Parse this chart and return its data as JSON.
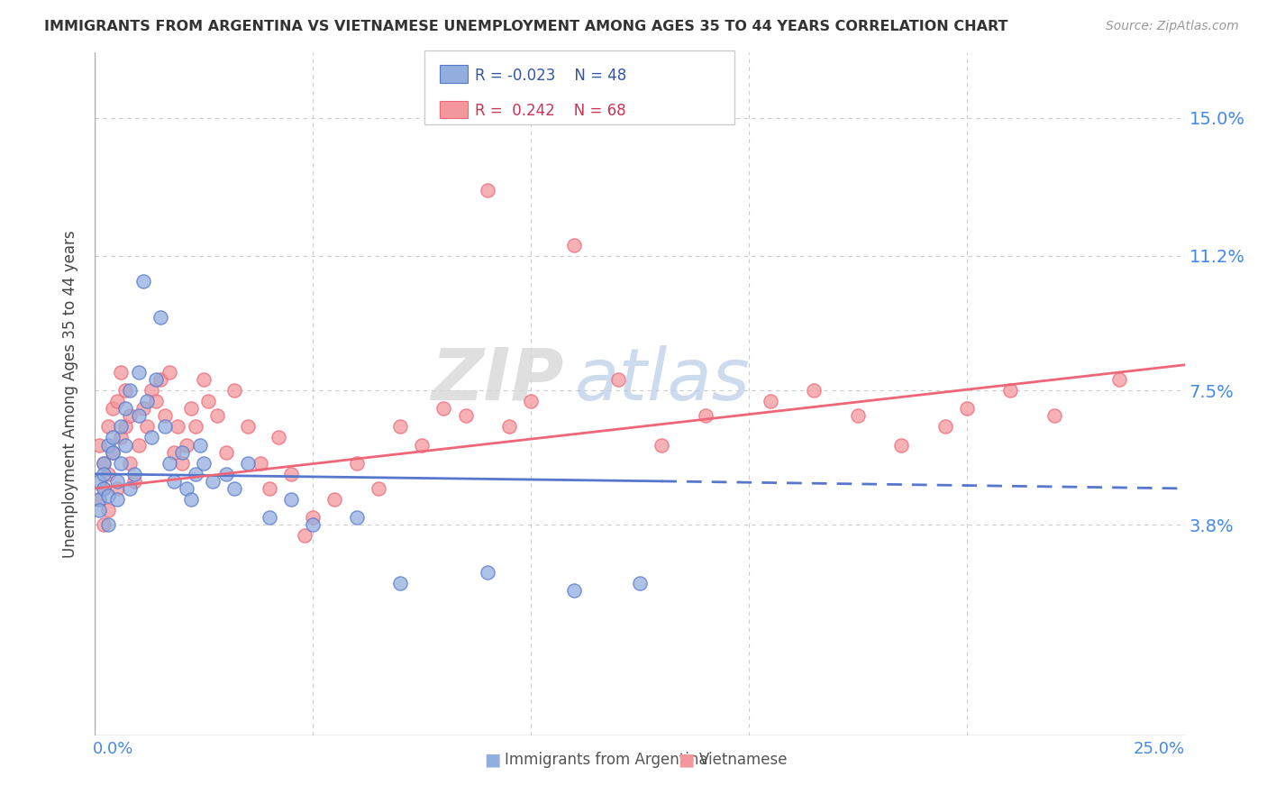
{
  "title": "IMMIGRANTS FROM ARGENTINA VS VIETNAMESE UNEMPLOYMENT AMONG AGES 35 TO 44 YEARS CORRELATION CHART",
  "source": "Source: ZipAtlas.com",
  "ylabel": "Unemployment Among Ages 35 to 44 years",
  "ytick_labels": [
    "15.0%",
    "11.2%",
    "7.5%",
    "3.8%"
  ],
  "ytick_values": [
    0.15,
    0.112,
    0.075,
    0.038
  ],
  "xlim": [
    0.0,
    0.25
  ],
  "ylim": [
    -0.02,
    0.168
  ],
  "legend_blue_r": "-0.023",
  "legend_blue_n": "48",
  "legend_pink_r": "0.242",
  "legend_pink_n": "68",
  "blue_color": "#92AEDE",
  "pink_color": "#F4979C",
  "blue_line_color": "#5577CC",
  "pink_line_color": "#EE6677",
  "watermark_zip": "ZIP",
  "watermark_atlas": "atlas",
  "argentina_x": [
    0.001,
    0.001,
    0.001,
    0.002,
    0.002,
    0.002,
    0.003,
    0.003,
    0.003,
    0.004,
    0.004,
    0.005,
    0.005,
    0.006,
    0.006,
    0.007,
    0.007,
    0.008,
    0.008,
    0.009,
    0.01,
    0.01,
    0.011,
    0.012,
    0.013,
    0.014,
    0.015,
    0.016,
    0.017,
    0.018,
    0.02,
    0.021,
    0.022,
    0.023,
    0.024,
    0.025,
    0.027,
    0.03,
    0.032,
    0.035,
    0.04,
    0.045,
    0.05,
    0.06,
    0.07,
    0.09,
    0.11,
    0.125
  ],
  "argentina_y": [
    0.05,
    0.045,
    0.042,
    0.055,
    0.048,
    0.052,
    0.046,
    0.06,
    0.038,
    0.058,
    0.062,
    0.05,
    0.045,
    0.065,
    0.055,
    0.07,
    0.06,
    0.048,
    0.075,
    0.052,
    0.08,
    0.068,
    0.105,
    0.072,
    0.062,
    0.078,
    0.095,
    0.065,
    0.055,
    0.05,
    0.058,
    0.048,
    0.045,
    0.052,
    0.06,
    0.055,
    0.05,
    0.052,
    0.048,
    0.055,
    0.04,
    0.045,
    0.038,
    0.04,
    0.022,
    0.025,
    0.02,
    0.022
  ],
  "vietnamese_x": [
    0.001,
    0.001,
    0.002,
    0.002,
    0.002,
    0.003,
    0.003,
    0.003,
    0.004,
    0.004,
    0.005,
    0.005,
    0.006,
    0.006,
    0.007,
    0.007,
    0.008,
    0.008,
    0.009,
    0.01,
    0.011,
    0.012,
    0.013,
    0.014,
    0.015,
    0.016,
    0.017,
    0.018,
    0.019,
    0.02,
    0.021,
    0.022,
    0.023,
    0.025,
    0.026,
    0.028,
    0.03,
    0.032,
    0.035,
    0.038,
    0.04,
    0.042,
    0.045,
    0.048,
    0.05,
    0.055,
    0.06,
    0.065,
    0.07,
    0.075,
    0.08,
    0.085,
    0.09,
    0.095,
    0.1,
    0.11,
    0.12,
    0.13,
    0.14,
    0.155,
    0.165,
    0.175,
    0.185,
    0.195,
    0.2,
    0.21,
    0.22,
    0.235
  ],
  "vietnamese_y": [
    0.06,
    0.045,
    0.055,
    0.048,
    0.038,
    0.052,
    0.065,
    0.042,
    0.07,
    0.058,
    0.048,
    0.072,
    0.08,
    0.062,
    0.065,
    0.075,
    0.055,
    0.068,
    0.05,
    0.06,
    0.07,
    0.065,
    0.075,
    0.072,
    0.078,
    0.068,
    0.08,
    0.058,
    0.065,
    0.055,
    0.06,
    0.07,
    0.065,
    0.078,
    0.072,
    0.068,
    0.058,
    0.075,
    0.065,
    0.055,
    0.048,
    0.062,
    0.052,
    0.035,
    0.04,
    0.045,
    0.055,
    0.048,
    0.065,
    0.06,
    0.07,
    0.068,
    0.13,
    0.065,
    0.072,
    0.115,
    0.078,
    0.06,
    0.068,
    0.072,
    0.075,
    0.068,
    0.06,
    0.065,
    0.07,
    0.075,
    0.068,
    0.078
  ]
}
